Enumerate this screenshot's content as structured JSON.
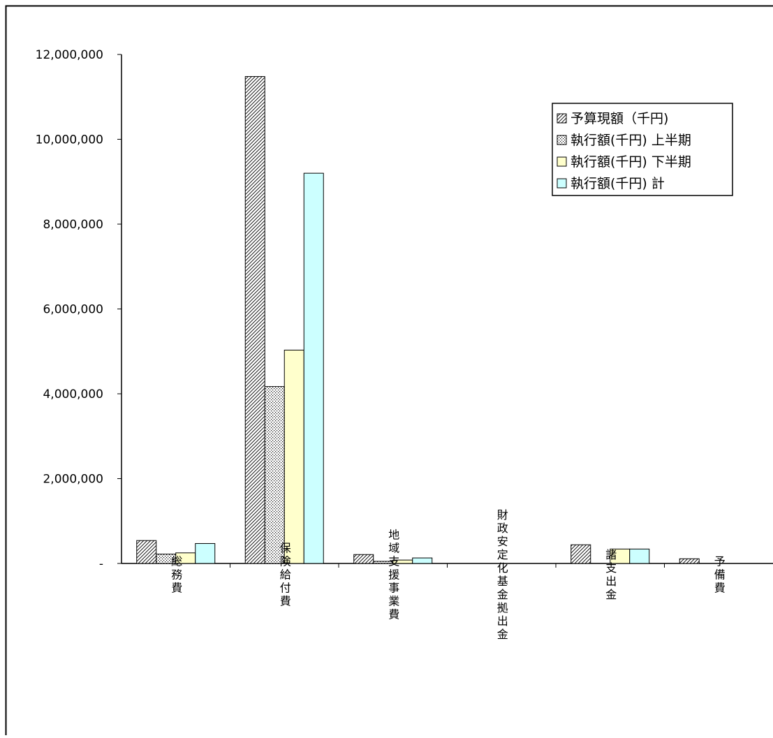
{
  "chart_data": {
    "type": "bar",
    "categories": [
      "総務費",
      "保険給付費",
      "地域支援事業費",
      "財政安定化基金拠出金",
      "諸支出金",
      "予備費"
    ],
    "series": [
      {
        "name": "予算現額（千円)",
        "pattern": "diagonal-hatch",
        "color": "#ffffff",
        "values": [
          540000,
          11480000,
          210000,
          0,
          440000,
          110000
        ]
      },
      {
        "name": "執行額(千円) 上半期",
        "pattern": "dots",
        "color": "#ffffff",
        "values": [
          220000,
          4170000,
          50000,
          0,
          0,
          0
        ]
      },
      {
        "name": "執行額(千円) 下半期",
        "pattern": "solid",
        "color": "#ffffcc",
        "values": [
          250000,
          5030000,
          80000,
          0,
          340000,
          0
        ]
      },
      {
        "name": "執行額(千円) 計",
        "pattern": "solid",
        "color": "#ccffff",
        "values": [
          470000,
          9200000,
          130000,
          0,
          340000,
          0
        ]
      }
    ],
    "yticks": [
      "12,000,000",
      "10,000,000",
      "8,000,000",
      "6,000,000",
      "4,000,000",
      "2,000,000",
      "-"
    ],
    "ylim": [
      0,
      12000000
    ],
    "title": "",
    "xlabel": "",
    "ylabel": "",
    "grid": false,
    "legend_position": "top-right"
  }
}
